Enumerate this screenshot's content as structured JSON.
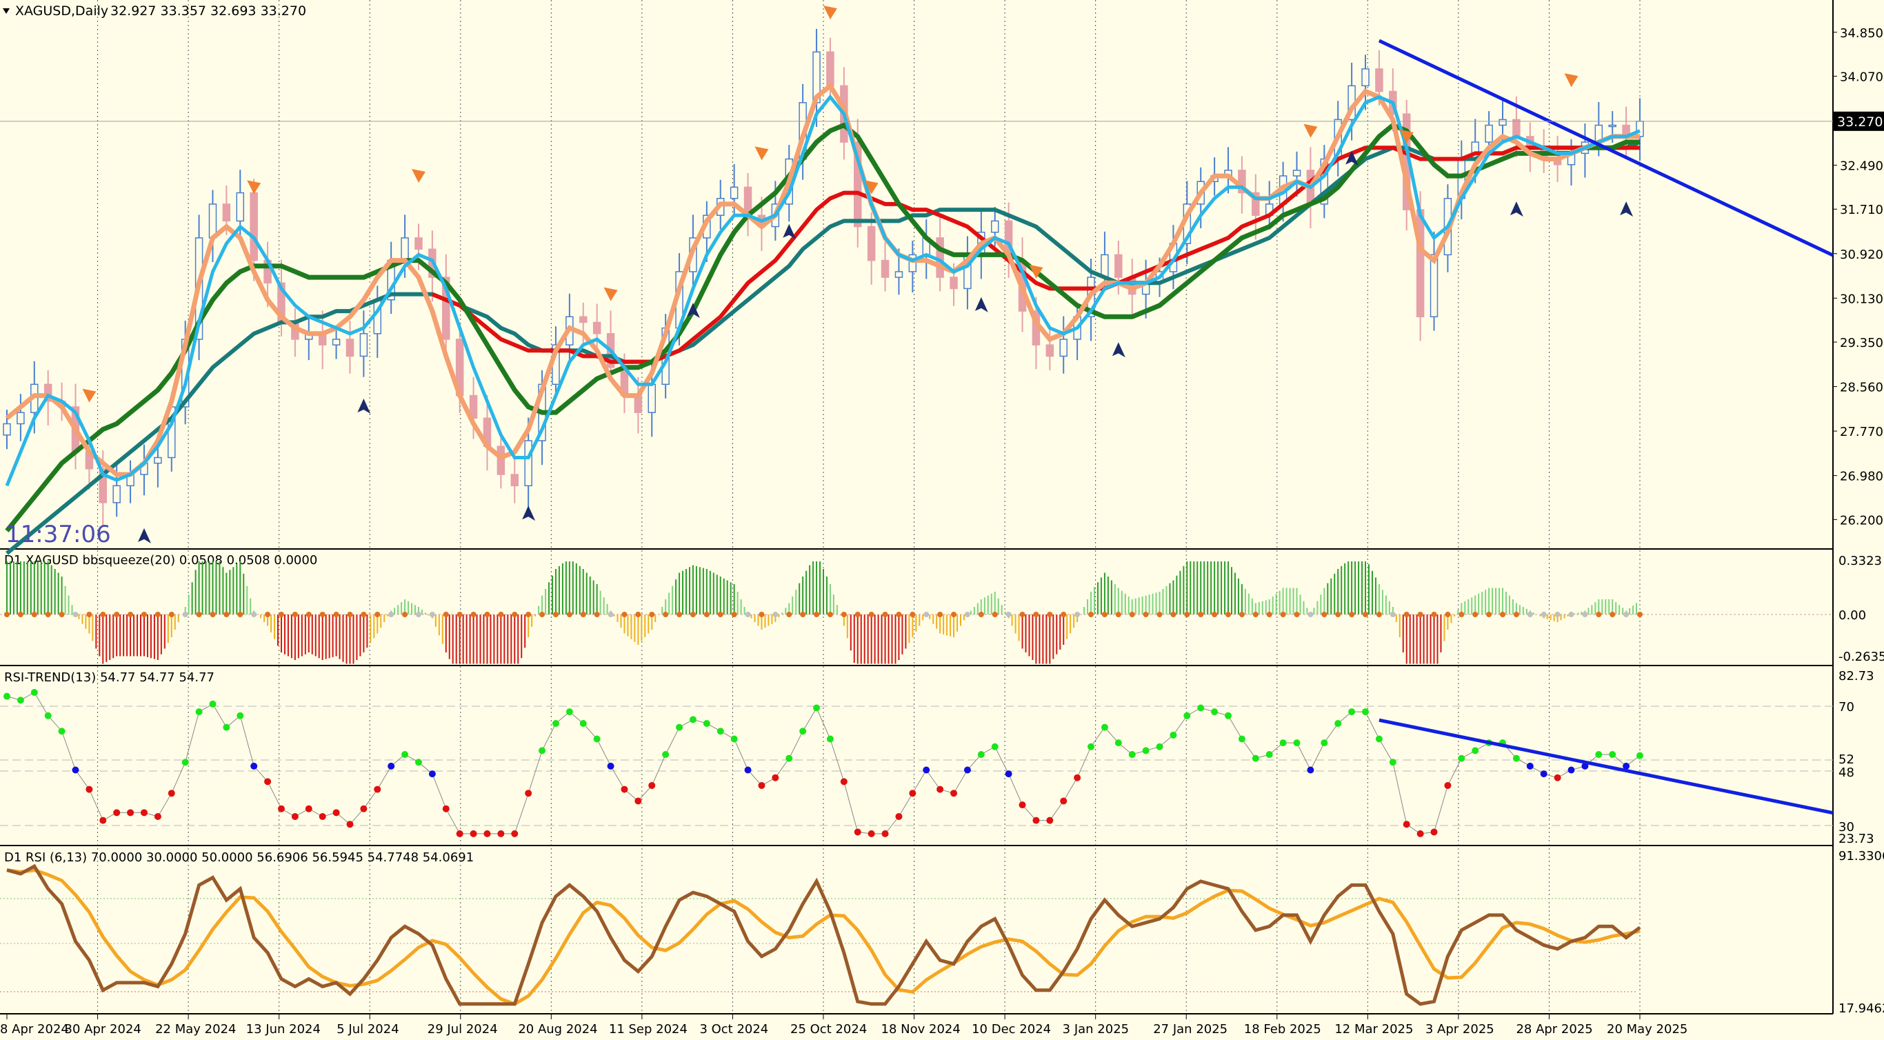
{
  "header": {
    "symbol": "XAGUSD,Daily",
    "ohlc": "32.927 33.357 32.693 33.270",
    "clock": "11:37:06"
  },
  "price_tag": "33.270",
  "panels": {
    "bbsqueeze": {
      "title": "D1 XAGUSD bbsqueeze(20) 0.0508 0.0508 0.0000",
      "ticks": [
        "0.3323",
        "0.00",
        "-0.2635"
      ]
    },
    "rsi_trend": {
      "title": "RSI-TREND(13) 54.77 54.77 54.77",
      "ticks": [
        "82.73",
        "70",
        "52",
        "48",
        "30",
        "23.73"
      ]
    },
    "rsi": {
      "title": "D1 RSI  (6,13) 70.0000 30.0000 50.0000 56.6906 56.5945 54.7748 54.0691",
      "ticks": [
        "91.3306",
        "17.9462"
      ]
    }
  },
  "colors": {
    "background": "#fffde8",
    "candle_up": "#4a7fd0",
    "candle_down": "#e6a0a8",
    "ma_fast": "#29b6e8",
    "ma_orange": "#f4a070",
    "ma_green": "#1f7a1f",
    "ma_teal": "#1a7a7a",
    "ma_red": "#e01010",
    "trendline": "#1020e0"
  },
  "chart_data": {
    "type": "line",
    "y_axis_ticks": [
      "34.850",
      "34.070",
      "33.270",
      "32.490",
      "31.710",
      "30.920",
      "30.130",
      "29.350",
      "28.560",
      "27.770",
      "26.980",
      "26.200"
    ],
    "x_axis_labels": [
      "8 Apr 2024",
      "30 Apr 2024",
      "22 May 2024",
      "13 Jun 2024",
      "5 Jul 2024",
      "29 Jul 2024",
      "20 Aug 2024",
      "11 Sep 2024",
      "3 Oct 2024",
      "25 Oct 2024",
      "18 Nov 2024",
      "10 Dec 2024",
      "3 Jan 2025",
      "27 Jan 2025",
      "18 Feb 2025",
      "12 Mar 2025",
      "3 Apr 2025",
      "28 Apr 2025",
      "20 May 2025"
    ],
    "ylim": [
      25.8,
      35.3
    ],
    "price_close": [
      27.9,
      28.1,
      28.6,
      28.3,
      28.2,
      27.4,
      27.1,
      26.5,
      26.8,
      27.0,
      27.2,
      27.3,
      28.2,
      29.4,
      31.2,
      31.8,
      31.5,
      32.0,
      30.8,
      30.4,
      29.7,
      29.4,
      29.5,
      29.3,
      29.4,
      29.1,
      29.5,
      30.1,
      30.8,
      31.2,
      31.0,
      30.5,
      29.4,
      28.4,
      28.0,
      27.5,
      27.0,
      26.8,
      27.6,
      28.6,
      29.3,
      29.8,
      29.7,
      29.5,
      28.9,
      28.4,
      28.1,
      28.6,
      29.6,
      30.6,
      31.2,
      31.6,
      31.9,
      32.1,
      31.6,
      31.4,
      31.8,
      32.6,
      33.6,
      34.5,
      33.9,
      32.9,
      31.4,
      30.8,
      30.5,
      30.6,
      30.9,
      31.2,
      30.5,
      30.3,
      30.9,
      31.3,
      31.5,
      30.8,
      29.9,
      29.3,
      29.1,
      29.4,
      29.8,
      30.5,
      30.9,
      30.5,
      30.2,
      30.4,
      30.6,
      31.1,
      31.8,
      32.2,
      32.3,
      32.4,
      32.0,
      31.6,
      31.8,
      32.3,
      32.4,
      31.8,
      32.6,
      33.3,
      33.9,
      34.2,
      33.8,
      33.4,
      31.7,
      29.8,
      30.9,
      31.9,
      32.6,
      32.9,
      33.2,
      33.3,
      33.0,
      32.8,
      32.6,
      32.5,
      32.7,
      32.9,
      33.2,
      33.2,
      33.0,
      33.27
    ],
    "ma_fast": [
      26.8,
      27.4,
      28.0,
      28.4,
      28.3,
      28.1,
      27.6,
      27.0,
      26.9,
      27.0,
      27.2,
      27.5,
      27.9,
      28.6,
      29.7,
      30.6,
      31.1,
      31.4,
      31.2,
      30.8,
      30.3,
      30.0,
      29.8,
      29.7,
      29.6,
      29.5,
      29.6,
      29.9,
      30.3,
      30.7,
      30.9,
      30.8,
      30.3,
      29.6,
      28.9,
      28.3,
      27.7,
      27.3,
      27.3,
      27.8,
      28.4,
      29.0,
      29.3,
      29.4,
      29.2,
      28.9,
      28.6,
      28.6,
      29.0,
      29.6,
      30.3,
      30.9,
      31.3,
      31.6,
      31.6,
      31.5,
      31.6,
      32.0,
      32.7,
      33.4,
      33.7,
      33.4,
      32.6,
      31.8,
      31.2,
      30.9,
      30.8,
      30.9,
      30.8,
      30.6,
      30.7,
      31.0,
      31.2,
      31.1,
      30.6,
      30.0,
      29.6,
      29.5,
      29.6,
      29.9,
      30.3,
      30.4,
      30.4,
      30.4,
      30.5,
      30.8,
      31.2,
      31.6,
      31.9,
      32.1,
      32.1,
      31.9,
      31.9,
      32.0,
      32.2,
      32.1,
      32.3,
      32.7,
      33.2,
      33.6,
      33.7,
      33.6,
      32.8,
      31.6,
      31.2,
      31.4,
      31.9,
      32.3,
      32.7,
      32.9,
      33.0,
      32.9,
      32.8,
      32.7,
      32.7,
      32.8,
      32.9,
      33.0,
      33.0,
      33.1
    ],
    "ma_orange": [
      28.0,
      28.2,
      28.4,
      28.4,
      28.2,
      27.8,
      27.4,
      27.2,
      27.0,
      27.0,
      27.2,
      27.6,
      28.3,
      29.3,
      30.4,
      31.2,
      31.4,
      31.2,
      30.6,
      30.1,
      29.8,
      29.6,
      29.5,
      29.5,
      29.6,
      29.8,
      30.1,
      30.5,
      30.8,
      30.8,
      30.5,
      29.9,
      29.1,
      28.4,
      27.9,
      27.5,
      27.3,
      27.4,
      27.8,
      28.5,
      29.2,
      29.6,
      29.5,
      29.2,
      28.7,
      28.4,
      28.4,
      28.8,
      29.5,
      30.3,
      31.0,
      31.5,
      31.8,
      31.8,
      31.6,
      31.4,
      31.6,
      32.2,
      33.0,
      33.7,
      33.9,
      33.5,
      32.6,
      31.8,
      31.2,
      30.9,
      30.8,
      30.8,
      30.7,
      30.6,
      30.8,
      31.1,
      31.2,
      30.9,
      30.3,
      29.7,
      29.4,
      29.5,
      29.8,
      30.2,
      30.4,
      30.4,
      30.3,
      30.4,
      30.7,
      31.1,
      31.6,
      32.0,
      32.3,
      32.3,
      32.1,
      31.9,
      31.9,
      32.1,
      32.2,
      32.1,
      32.5,
      33.0,
      33.5,
      33.8,
      33.7,
      33.3,
      32.2,
      31.0,
      30.8,
      31.3,
      32.0,
      32.5,
      32.8,
      33.0,
      32.9,
      32.7,
      32.6,
      32.6,
      32.7,
      32.8,
      32.9,
      33.0,
      33.0,
      33.0
    ],
    "ma_green": [
      26.0,
      26.3,
      26.6,
      26.9,
      27.2,
      27.4,
      27.6,
      27.8,
      27.9,
      28.1,
      28.3,
      28.5,
      28.8,
      29.2,
      29.7,
      30.1,
      30.4,
      30.6,
      30.7,
      30.7,
      30.7,
      30.6,
      30.5,
      30.5,
      30.5,
      30.5,
      30.5,
      30.6,
      30.7,
      30.8,
      30.8,
      30.6,
      30.4,
      30.1,
      29.7,
      29.3,
      28.9,
      28.5,
      28.2,
      28.1,
      28.1,
      28.3,
      28.5,
      28.7,
      28.8,
      28.9,
      28.9,
      29.0,
      29.2,
      29.5,
      29.9,
      30.4,
      30.9,
      31.3,
      31.6,
      31.8,
      32.0,
      32.3,
      32.6,
      32.9,
      33.1,
      33.2,
      33.0,
      32.6,
      32.2,
      31.8,
      31.5,
      31.2,
      31.0,
      30.9,
      30.9,
      30.9,
      30.9,
      30.9,
      30.8,
      30.6,
      30.4,
      30.2,
      30.0,
      29.9,
      29.8,
      29.8,
      29.8,
      29.9,
      30.0,
      30.2,
      30.4,
      30.6,
      30.8,
      31.0,
      31.2,
      31.3,
      31.4,
      31.6,
      31.7,
      31.8,
      31.9,
      32.1,
      32.4,
      32.7,
      33.0,
      33.2,
      33.1,
      32.8,
      32.5,
      32.3,
      32.3,
      32.4,
      32.5,
      32.6,
      32.7,
      32.7,
      32.7,
      32.7,
      32.7,
      32.8,
      32.8,
      32.8,
      32.9,
      32.9
    ],
    "ma_red": [
      null,
      null,
      null,
      null,
      null,
      null,
      null,
      null,
      null,
      null,
      null,
      null,
      null,
      null,
      null,
      null,
      null,
      null,
      null,
      null,
      null,
      null,
      null,
      null,
      null,
      null,
      null,
      null,
      null,
      null,
      null,
      30.2,
      30.1,
      30.0,
      29.8,
      29.6,
      29.4,
      29.3,
      29.2,
      29.2,
      29.2,
      29.2,
      29.1,
      29.1,
      29.0,
      29.0,
      29.0,
      29.0,
      29.1,
      29.2,
      29.4,
      29.6,
      29.8,
      30.1,
      30.4,
      30.6,
      30.8,
      31.1,
      31.4,
      31.7,
      31.9,
      32.0,
      32.0,
      31.9,
      31.8,
      31.8,
      31.7,
      31.7,
      31.6,
      31.5,
      31.4,
      31.2,
      31.0,
      30.8,
      30.6,
      30.4,
      30.3,
      30.3,
      30.3,
      30.3,
      30.3,
      30.4,
      30.5,
      30.6,
      30.7,
      30.8,
      30.9,
      31.0,
      31.1,
      31.2,
      31.4,
      31.5,
      31.6,
      31.8,
      32.0,
      32.2,
      32.4,
      32.6,
      32.7,
      32.8,
      32.8,
      32.8,
      32.7,
      32.6,
      32.6,
      32.6,
      32.6,
      32.7,
      32.7,
      32.7,
      32.8,
      32.8,
      32.8,
      32.8,
      32.8,
      32.8,
      32.8,
      32.8,
      32.8,
      32.8
    ],
    "ma_teal": [
      25.6,
      25.8,
      26.0,
      26.2,
      26.4,
      26.6,
      26.8,
      27.0,
      27.2,
      27.4,
      27.6,
      27.8,
      28.0,
      28.3,
      28.6,
      28.9,
      29.1,
      29.3,
      29.5,
      29.6,
      29.7,
      29.7,
      29.8,
      29.8,
      29.9,
      29.9,
      30.0,
      30.1,
      30.2,
      30.2,
      30.2,
      30.2,
      30.1,
      30.0,
      29.9,
      29.8,
      29.6,
      29.5,
      29.3,
      29.2,
      29.2,
      29.2,
      29.2,
      29.1,
      29.1,
      29.0,
      29.0,
      29.0,
      29.1,
      29.2,
      29.3,
      29.5,
      29.7,
      29.9,
      30.1,
      30.3,
      30.5,
      30.7,
      31.0,
      31.2,
      31.4,
      31.5,
      31.5,
      31.5,
      31.5,
      31.5,
      31.6,
      31.6,
      31.7,
      31.7,
      31.7,
      31.7,
      31.7,
      31.6,
      31.5,
      31.4,
      31.2,
      31.0,
      30.8,
      30.6,
      30.5,
      30.4,
      30.4,
      30.4,
      30.4,
      30.5,
      30.6,
      30.7,
      30.8,
      30.9,
      31.0,
      31.1,
      31.2,
      31.4,
      31.6,
      31.8,
      32.0,
      32.2,
      32.4,
      32.6,
      32.7,
      32.8,
      32.8,
      32.7,
      32.6,
      32.6,
      32.6,
      32.6,
      32.7,
      32.7,
      32.8,
      32.8,
      32.8,
      32.8,
      32.8,
      32.8,
      32.8,
      32.8,
      32.8,
      32.9
    ],
    "trendline": {
      "from": [
        100,
        34.7
      ],
      "to": [
        133,
        30.9
      ]
    }
  }
}
